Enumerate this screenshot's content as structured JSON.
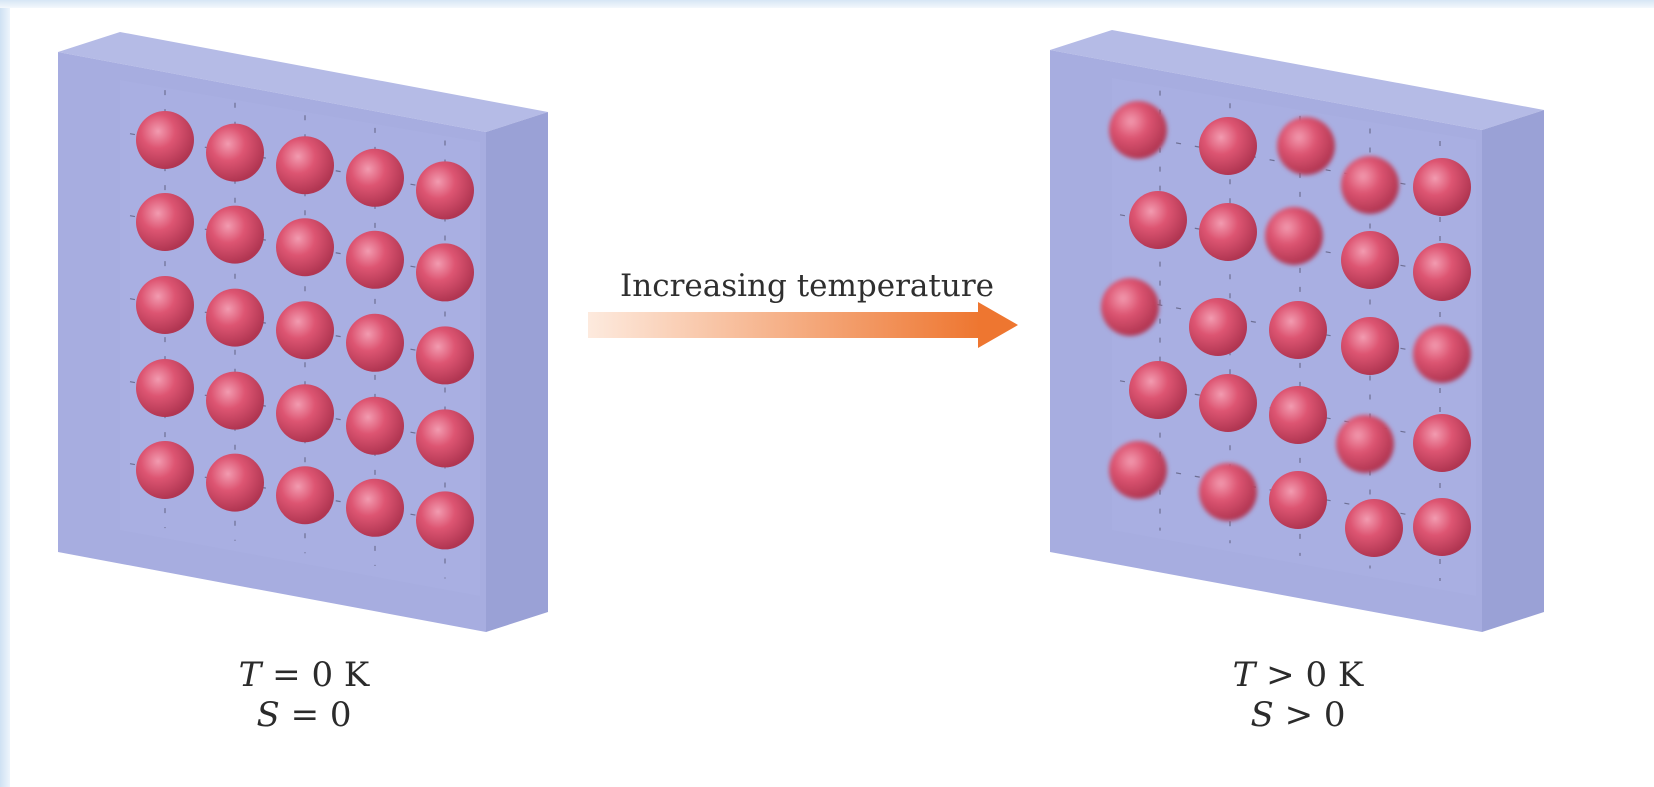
{
  "arrow": {
    "label": "Increasing temperature",
    "color_start": "#fde5d6",
    "color_end": "#ef7a33"
  },
  "left_panel": {
    "caption_line1_var": "T",
    "caption_line1_rest": " = 0 K",
    "caption_line2_var": "S",
    "caption_line2_rest": " = 0",
    "grid": "5x5 ordered lattice"
  },
  "right_panel": {
    "caption_line1_var": "T",
    "caption_line1_rest": " > 0 K",
    "caption_line2_var": "S",
    "caption_line2_rest": " > 0",
    "grid": "5x5 vibrating lattice"
  },
  "colors": {
    "crystal_face": "#a4abdd",
    "crystal_side": "#9aa2d8",
    "crystal_top": "#b4bae6",
    "atom": "#d84f6a",
    "atom_highlight": "#f08aa0"
  }
}
